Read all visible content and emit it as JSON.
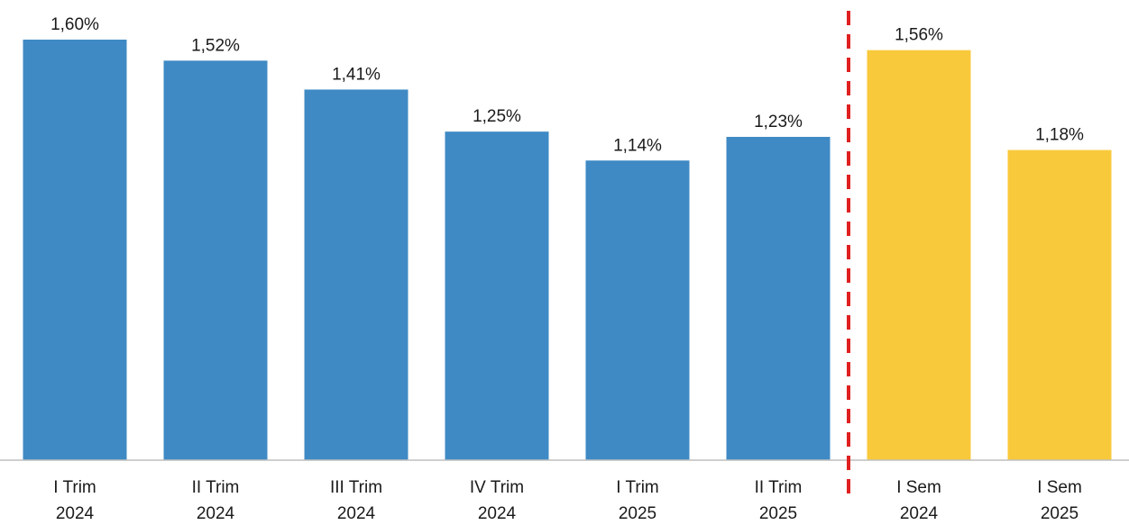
{
  "chart_data": {
    "type": "bar",
    "title": "",
    "xlabel": "",
    "ylabel": "",
    "ylim": [
      0,
      1.6
    ],
    "grid": false,
    "categories": [
      [
        "I Trim",
        "2024"
      ],
      [
        "II Trim",
        "2024"
      ],
      [
        "III Trim",
        "2024"
      ],
      [
        "IV Trim",
        "2024"
      ],
      [
        "I Trim",
        "2025"
      ],
      [
        "II Trim",
        "2025"
      ],
      [
        "I Sem",
        "2024"
      ],
      [
        "I Sem",
        "2025"
      ]
    ],
    "values": [
      1.6,
      1.52,
      1.41,
      1.25,
      1.14,
      1.23,
      1.56,
      1.18
    ],
    "value_labels": [
      "1,60%",
      "1,52%",
      "1,41%",
      "1,25%",
      "1,14%",
      "1,23%",
      "1,56%",
      "1,18%"
    ],
    "bar_colors": [
      "#3f8ac4",
      "#3f8ac4",
      "#3f8ac4",
      "#3f8ac4",
      "#3f8ac4",
      "#3f8ac4",
      "#f9c93c",
      "#f9c93c"
    ],
    "separator": {
      "after_index": 5,
      "style": "dashed",
      "color": "#e02020"
    },
    "axis_color": "#bfbfbf"
  }
}
